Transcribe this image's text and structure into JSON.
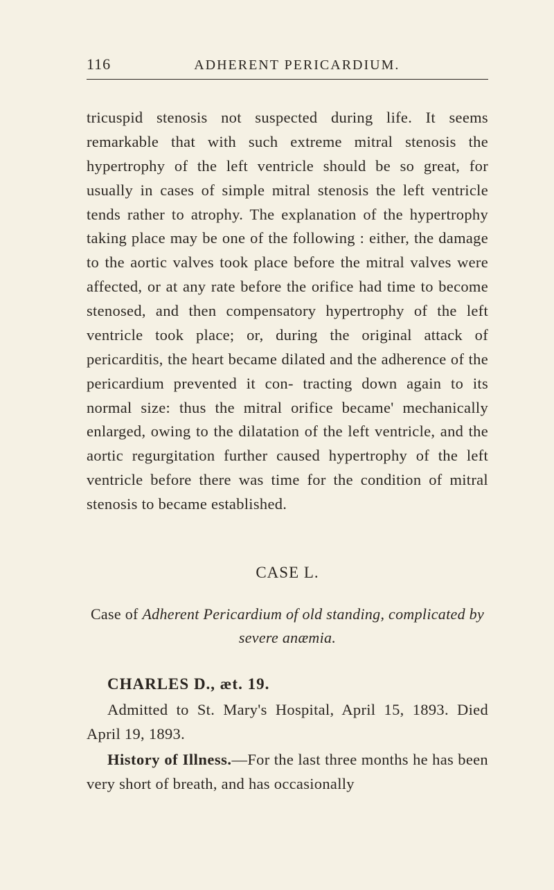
{
  "page": {
    "number": "116",
    "running_title": "ADHERENT PERICARDIUM.",
    "background_color": "#f5f1e4",
    "text_color": "#2a2520"
  },
  "body_paragraph": "tricuspid stenosis not suspected during life. It seems remarkable that with such extreme mitral stenosis the hypertrophy of the left ventricle should be so great, for usually in cases of simple mitral stenosis the left ventricle tends rather to atrophy. The explanation of the hypertrophy taking place may be one of the following : either, the damage to the aortic valves took place before the mitral valves were affected, or at any rate before the orifice had time to become stenosed, and then compensatory hypertrophy of the left ventricle took place; or, during the original attack of pericarditis, the heart became dilated and the adherence of the pericardium prevented it con- tracting down again to its normal size: thus the mitral orifice became' mechanically enlarged, owing to the dilatation of the left ventricle, and the aortic regurgitation further caused hypertrophy of the left ventricle before there was time for the condition of mitral stenosis to became established.",
  "case": {
    "label": "CASE L.",
    "title_prefix": "Case of ",
    "title_italic": "Adherent Pericardium of old standing, complicated by severe anæmia.",
    "patient_name": "CHARLES D., æt. 19.",
    "admission": "Admitted to St. Mary's Hospital, April 15, 1893. Died April 19, 1893.",
    "history_label": "History of Illness.",
    "history_text": "—For the last three months he has been very short of breath, and has occasionally"
  },
  "typography": {
    "body_fontsize": 22.5,
    "header_fontsize": 22,
    "line_height": 1.55,
    "font_family": "Georgia, Times New Roman, serif"
  }
}
